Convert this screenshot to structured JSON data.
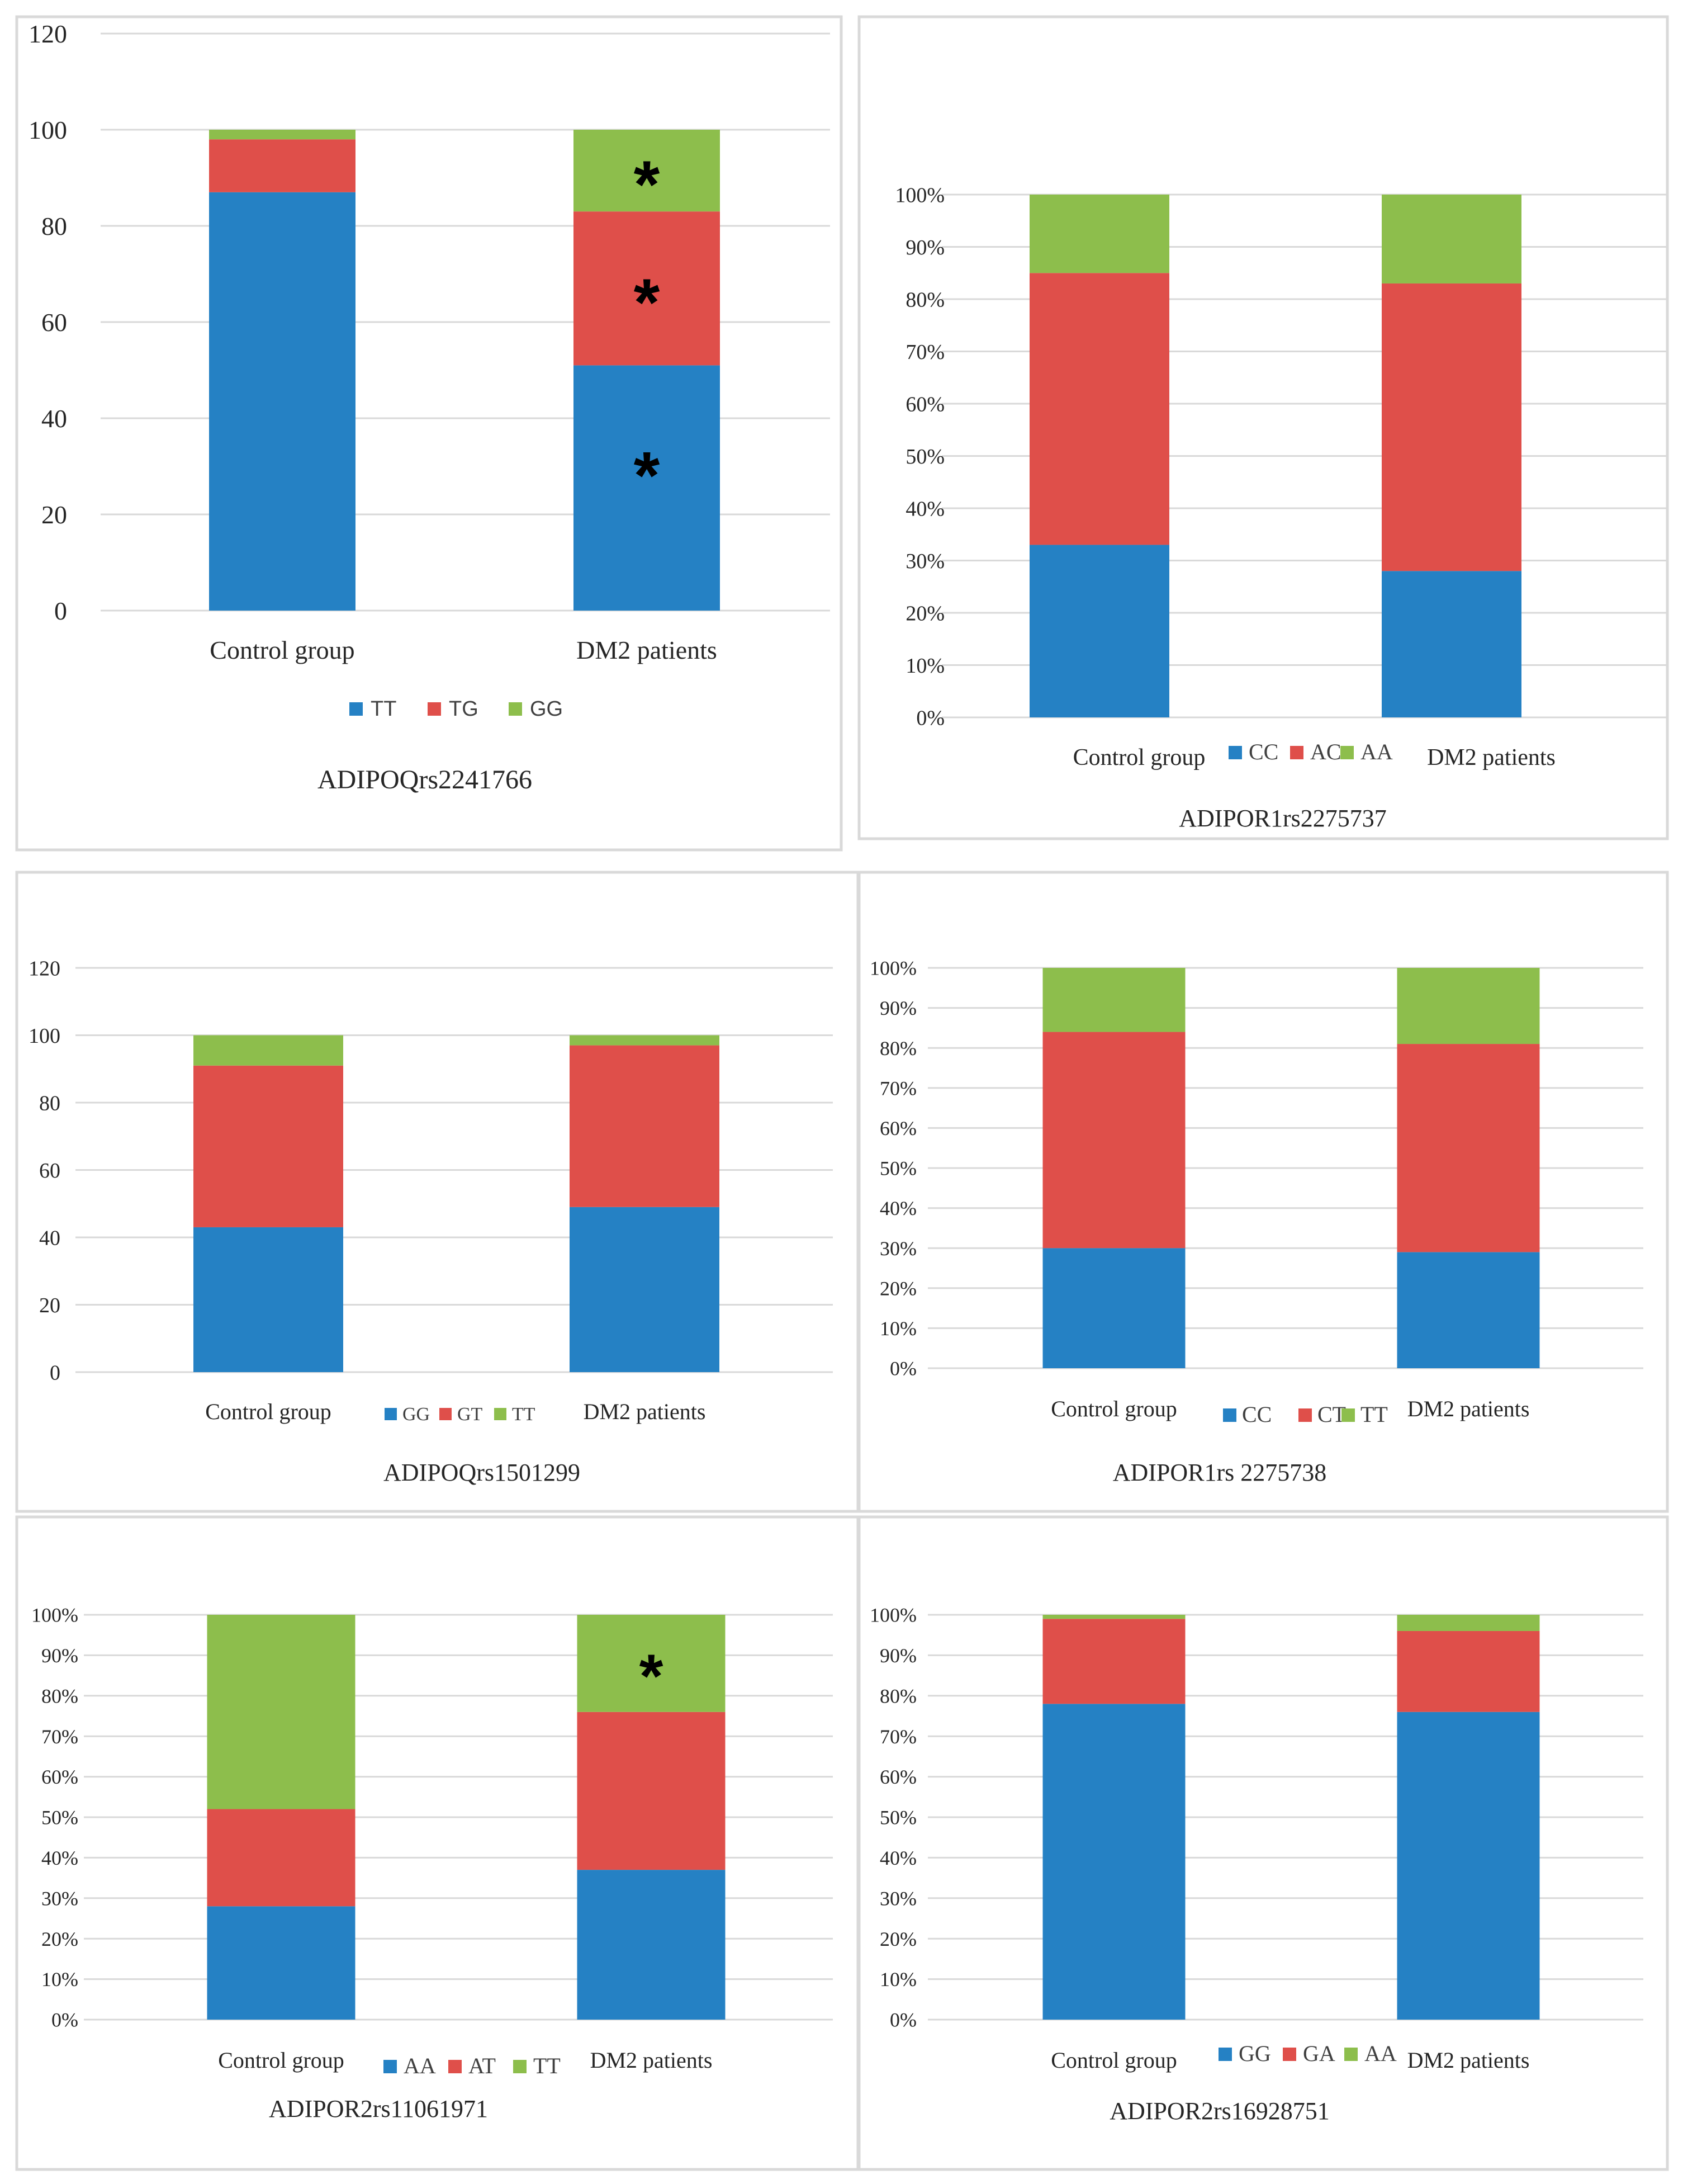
{
  "colors": {
    "blue": "#2581c4",
    "red": "#df4f4a",
    "green": "#8dbe4c"
  },
  "chart_data": [
    {
      "type": "bar",
      "stacked": true,
      "title": "ADIPOQrs2241766",
      "categories": [
        "Control group",
        "DM2 patients"
      ],
      "ylim": [
        0,
        120
      ],
      "yticks": [
        0,
        20,
        40,
        60,
        80,
        100,
        120
      ],
      "ytick_labels": [
        "0",
        "20",
        "40",
        "60",
        "80",
        "100",
        "120"
      ],
      "legend_position": "bottom",
      "legend_labels": [
        "TT",
        "TG",
        "GG"
      ],
      "series": [
        {
          "name": "TT",
          "color": "#2581c4",
          "values": [
            87,
            51
          ]
        },
        {
          "name": "TG",
          "color": "#df4f4a",
          "values": [
            11,
            32
          ]
        },
        {
          "name": "GG",
          "color": "#8dbe4c",
          "values": [
            2,
            17
          ]
        }
      ],
      "annotations": [
        "*",
        "*",
        "*"
      ]
    },
    {
      "type": "bar",
      "stacked": true,
      "title": "ADIPOR1rs2275737",
      "categories": [
        "Control group",
        "DM2 patients"
      ],
      "ylim": [
        0,
        100
      ],
      "yticks": [
        0,
        10,
        20,
        30,
        40,
        50,
        60,
        70,
        80,
        90,
        100
      ],
      "ytick_labels": [
        "0%",
        "10%",
        "20%",
        "30%",
        "40%",
        "50%",
        "60%",
        "70%",
        "80%",
        "90%",
        "100%"
      ],
      "legend_position": "bottom-center",
      "legend_labels": [
        "CC",
        "AC",
        "AA"
      ],
      "series": [
        {
          "name": "CC",
          "color": "#2581c4",
          "values": [
            33,
            28
          ]
        },
        {
          "name": "AC",
          "color": "#df4f4a",
          "values": [
            52,
            55
          ]
        },
        {
          "name": "AA",
          "color": "#8dbe4c",
          "values": [
            15,
            17
          ]
        }
      ],
      "annotations": []
    },
    {
      "type": "bar",
      "stacked": true,
      "title": "ADIPOQrs1501299",
      "categories": [
        "Control group",
        "DM2 patients"
      ],
      "ylim": [
        0,
        120
      ],
      "yticks": [
        0,
        20,
        40,
        60,
        80,
        100,
        120
      ],
      "ytick_labels": [
        "0",
        "20",
        "40",
        "60",
        "80",
        "100",
        "120"
      ],
      "legend_position": "bottom-center",
      "legend_labels": [
        "GG",
        "GT",
        "TT"
      ],
      "series": [
        {
          "name": "GG",
          "color": "#2581c4",
          "values": [
            43,
            49
          ]
        },
        {
          "name": "GT",
          "color": "#df4f4a",
          "values": [
            48,
            48
          ]
        },
        {
          "name": "TT",
          "color": "#8dbe4c",
          "values": [
            9,
            3
          ]
        }
      ],
      "annotations": []
    },
    {
      "type": "bar",
      "stacked": true,
      "title": "ADIPOR1rs 2275738",
      "categories": [
        "Control group",
        "DM2 patients"
      ],
      "ylim": [
        0,
        100
      ],
      "yticks": [
        0,
        10,
        20,
        30,
        40,
        50,
        60,
        70,
        80,
        90,
        100
      ],
      "ytick_labels": [
        "0%",
        "10%",
        "20%",
        "30%",
        "40%",
        "50%",
        "60%",
        "70%",
        "80%",
        "90%",
        "100%"
      ],
      "legend_position": "bottom-center",
      "legend_labels": [
        "CC",
        "CT",
        "TT"
      ],
      "series": [
        {
          "name": "CC",
          "color": "#2581c4",
          "values": [
            30,
            29
          ]
        },
        {
          "name": "CT",
          "color": "#df4f4a",
          "values": [
            54,
            52
          ]
        },
        {
          "name": "TT",
          "color": "#8dbe4c",
          "values": [
            16,
            19
          ]
        }
      ],
      "annotations": []
    },
    {
      "type": "bar",
      "stacked": true,
      "title": "ADIPOR2rs11061971",
      "categories": [
        "Control group",
        "DM2 patients"
      ],
      "ylim": [
        0,
        100
      ],
      "yticks": [
        0,
        10,
        20,
        30,
        40,
        50,
        60,
        70,
        80,
        90,
        100
      ],
      "ytick_labels": [
        "0%",
        "10%",
        "20%",
        "30%",
        "40%",
        "50%",
        "60%",
        "70%",
        "80%",
        "90%",
        "100%"
      ],
      "legend_position": "bottom-center",
      "legend_labels": [
        "AA",
        "AT",
        "TT"
      ],
      "series": [
        {
          "name": "AA",
          "color": "#2581c4",
          "values": [
            28,
            37
          ]
        },
        {
          "name": "AT",
          "color": "#df4f4a",
          "values": [
            24,
            39
          ]
        },
        {
          "name": "TT",
          "color": "#8dbe4c",
          "values": [
            48,
            24
          ]
        }
      ],
      "annotations": [
        "*"
      ]
    },
    {
      "type": "bar",
      "stacked": true,
      "title": "ADIPOR2rs16928751",
      "categories": [
        "Control group",
        "DM2 patients"
      ],
      "ylim": [
        0,
        100
      ],
      "yticks": [
        0,
        10,
        20,
        30,
        40,
        50,
        60,
        70,
        80,
        90,
        100
      ],
      "ytick_labels": [
        "0%",
        "10%",
        "20%",
        "30%",
        "40%",
        "50%",
        "60%",
        "70%",
        "80%",
        "90%",
        "100%"
      ],
      "legend_position": "bottom-center",
      "legend_labels": [
        "GG",
        "GA",
        "AA"
      ],
      "series": [
        {
          "name": "GG",
          "color": "#2581c4",
          "values": [
            78,
            76
          ]
        },
        {
          "name": "GA",
          "color": "#df4f4a",
          "values": [
            21,
            20
          ]
        },
        {
          "name": "AA",
          "color": "#8dbe4c",
          "values": [
            1,
            4
          ]
        }
      ],
      "annotations": []
    }
  ]
}
